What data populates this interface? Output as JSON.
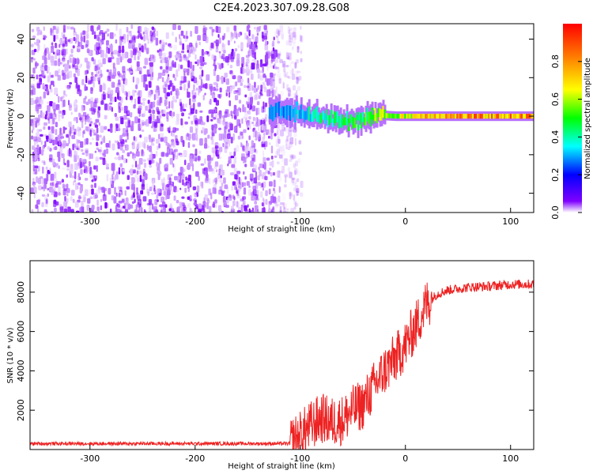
{
  "figure": {
    "title": "C2E4.2023.307.09.28.G08"
  },
  "chart_data": [
    {
      "type": "heatmap",
      "xlabel": "Height of straight line (km)",
      "ylabel": "Frequency (Hz)",
      "xlim": [
        -357,
        122
      ],
      "ylim": [
        -50,
        48
      ],
      "x_ticks": [
        -300,
        -200,
        -100,
        0,
        100
      ],
      "y_ticks": [
        -40,
        -20,
        0,
        20,
        40
      ],
      "x_tick_labels": [
        "-300",
        "-200",
        "-100",
        "0",
        "100"
      ],
      "y_tick_labels": [
        "-40",
        "-20",
        "0",
        "20",
        "40"
      ],
      "colorbar": {
        "label": "Normalized spectral amplitude",
        "range": [
          0,
          1
        ],
        "ticks": [
          0.0,
          0.2,
          0.4,
          0.6,
          0.8
        ],
        "tick_labels": [
          "0.0",
          "0.2",
          "0.4",
          "0.6",
          "0.8"
        ],
        "colormap": [
          "#ffffff",
          "#7f00ff",
          "#0000ff",
          "#00ffff",
          "#00ff00",
          "#ffff00",
          "#ff8000",
          "#ff0000"
        ]
      },
      "noise_region": {
        "x_from": -357,
        "x_to": -125,
        "amplitude_range": [
          0.0,
          0.15
        ]
      },
      "signal_track": [
        {
          "x": -130,
          "freq": 2.5,
          "amp": 0.35
        },
        {
          "x": -110,
          "freq": 3.0,
          "amp": 0.45
        },
        {
          "x": -90,
          "freq": 0.5,
          "amp": 0.5
        },
        {
          "x": -70,
          "freq": -2.0,
          "amp": 0.55
        },
        {
          "x": -55,
          "freq": -3.0,
          "amp": 0.6
        },
        {
          "x": -40,
          "freq": -1.0,
          "amp": 0.6
        },
        {
          "x": -25,
          "freq": 0.5,
          "amp": 0.75
        },
        {
          "x": -10,
          "freq": 0.0,
          "amp": 0.7
        },
        {
          "x": 20,
          "freq": 0.0,
          "amp": 0.9
        },
        {
          "x": 60,
          "freq": 0.0,
          "amp": 0.9
        },
        {
          "x": 122,
          "freq": 0.0,
          "amp": 0.9
        }
      ]
    },
    {
      "type": "line",
      "xlabel": "Height of straight line (km)",
      "ylabel": "SNR (10 * v/v)",
      "xlim": [
        -357,
        122
      ],
      "ylim": [
        0,
        9600
      ],
      "x_ticks": [
        -300,
        -200,
        -100,
        0,
        100
      ],
      "y_ticks": [
        2000,
        4000,
        6000,
        8000
      ],
      "x_tick_labels": [
        "-300",
        "-200",
        "-100",
        "0",
        "100"
      ],
      "y_tick_labels": [
        "2000",
        "4000",
        "6000",
        "8000"
      ],
      "color": "#ee2222",
      "series": [
        {
          "x": [
            -357,
            -300,
            -200,
            -150,
            -110,
            -100,
            -90,
            -80,
            -70,
            -60,
            -50,
            -40,
            -30,
            -20,
            -10,
            0,
            10,
            20,
            30,
            40,
            60,
            80,
            100,
            122
          ],
          "y": [
            300,
            300,
            300,
            300,
            300,
            700,
            1200,
            1600,
            1400,
            1500,
            2000,
            2300,
            3200,
            4000,
            4600,
            5300,
            6300,
            7400,
            7900,
            8100,
            8250,
            8300,
            8400,
            8400
          ]
        }
      ]
    }
  ]
}
